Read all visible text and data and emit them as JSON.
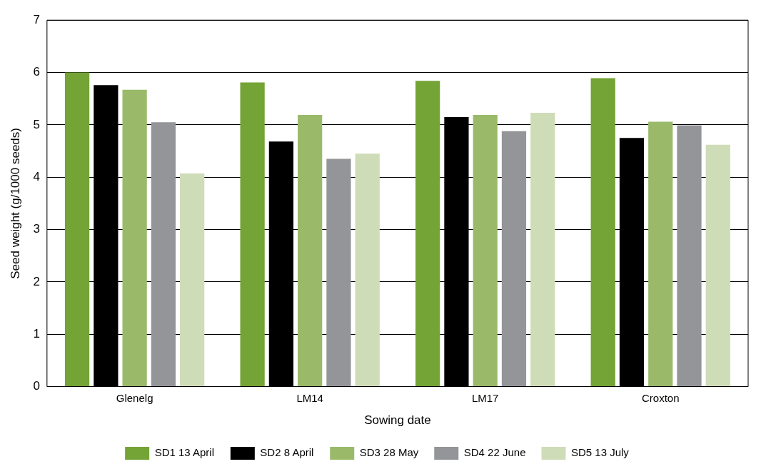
{
  "chart_data": {
    "type": "bar",
    "xlabel": "Sowing date",
    "ylabel": "Seed weight (g/1000 seeds)",
    "categories": [
      "Glenelg",
      "LM14",
      "LM17",
      "Croxton"
    ],
    "series": [
      {
        "name": "SD1 13 April",
        "color": "#74a336",
        "values": [
          6.0,
          5.81,
          5.84,
          5.89
        ]
      },
      {
        "name": "SD2 8 April",
        "color": "#000000",
        "values": [
          5.76,
          4.68,
          5.15,
          4.75
        ]
      },
      {
        "name": "SD3 28 May",
        "color": "#9aba6a",
        "values": [
          5.67,
          5.19,
          5.19,
          5.06
        ]
      },
      {
        "name": "SD4 22 June",
        "color": "#939598",
        "values": [
          5.05,
          4.35,
          4.88,
          4.99
        ]
      },
      {
        "name": "SD5 13 July",
        "color": "#cfdcb8",
        "values": [
          4.07,
          4.45,
          5.23,
          4.62
        ]
      }
    ],
    "ylim": [
      0,
      7
    ],
    "yticks": [
      0,
      1,
      2,
      3,
      4,
      5,
      6,
      7
    ],
    "grid": "y",
    "legend": "bottom"
  }
}
